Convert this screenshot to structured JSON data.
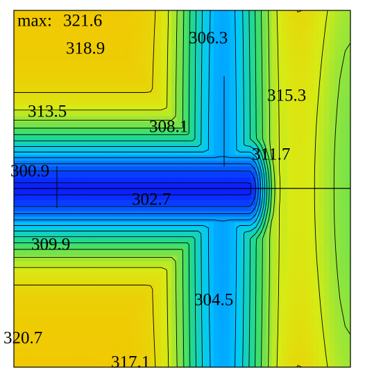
{
  "chart_data": {
    "type": "contour",
    "max_label": "max:",
    "max": 321.6,
    "levels": [
      318.9,
      306.3,
      315.3,
      313.5,
      308.1,
      311.7,
      300.9,
      302.7,
      309.9,
      304.5,
      320.7,
      317.1
    ]
  }
}
